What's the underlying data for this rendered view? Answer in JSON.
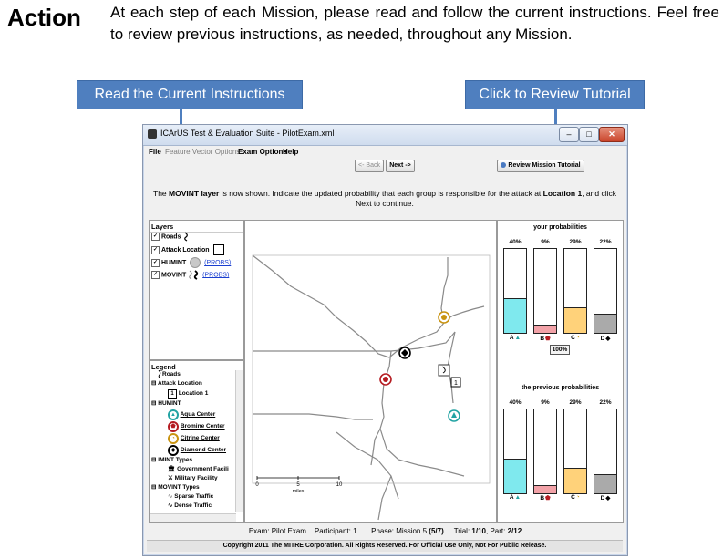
{
  "heading": "Action",
  "intro_text": "At each step of each Mission, please read and follow the current instructions. Feel free to review previous instructions, as needed, throughout any Mission.",
  "callouts": {
    "current_instructions": "Read the Current Instructions",
    "tutorial": "Click to Review Tutorial"
  },
  "window": {
    "title": "ICArUS Test & Evaluation Suite - PilotExam.xml",
    "menu": {
      "file": "File",
      "feature_vector_options": "Feature Vector Options",
      "exam_options": "Exam Options",
      "help": "Help"
    },
    "buttons": {
      "back": "<- Back",
      "next": "Next ->",
      "review_tutorial": "Review Mission Tutorial"
    },
    "instructions": {
      "prefix": "The",
      "layer": "MOVINT layer",
      "middle": "is now shown. Indicate the updated probability that each group is responsible for the attack at",
      "location": "Location 1",
      "suffix": ", and click Next to continue."
    },
    "layers": {
      "title": "Layers",
      "items": [
        {
          "label": "Roads",
          "checked": true
        },
        {
          "label": "Attack Location",
          "checked": true
        },
        {
          "label": "HUMINT",
          "checked": true,
          "link": "(PROBS)"
        },
        {
          "label": "MOVINT",
          "checked": true,
          "link": "(PROBS)"
        }
      ]
    },
    "legend": {
      "title": "Legend",
      "items": {
        "roads": "Roads",
        "attack_location": "Attack Location",
        "location_1": "Location 1",
        "location_1_number": "1",
        "humint": "HUMINT",
        "aqua_center": "Aqua Center",
        "bromine_center": "Bromine Center",
        "citrine_center": "Citrine Center",
        "diamond_center": "Diamond Center",
        "imint_types": "IMINT Types",
        "government_facility": "Government Facili",
        "military_facility": "Military Facility",
        "movint_types": "MOVINT Types",
        "sparse_traffic": "Sparse Traffic",
        "dense_traffic": "Dense Traffic"
      }
    },
    "map": {
      "scale_labels": [
        "0",
        "5",
        "10"
      ],
      "scale_unit": "miles",
      "location_label": "1"
    },
    "probabilities": {
      "current_title": "your probabilities",
      "previous_title": "the previous probabilities",
      "total": "100%",
      "groups": [
        {
          "label": "A",
          "value": 40,
          "value_label": "40%",
          "color": "#7fe9ee"
        },
        {
          "label": "B",
          "value": 9,
          "value_label": "9%",
          "color": "#f2a2a8"
        },
        {
          "label": "C",
          "value": 29,
          "value_label": "29%",
          "color": "#ffd27a"
        },
        {
          "label": "D",
          "value": 22,
          "value_label": "22%",
          "color": "#aaaaaa"
        }
      ],
      "previous_groups": [
        {
          "label": "A",
          "value": 40,
          "value_label": "40%",
          "color": "#7fe9ee"
        },
        {
          "label": "B",
          "value": 9,
          "value_label": "9%",
          "color": "#f2a2a8"
        },
        {
          "label": "C",
          "value": 29,
          "value_label": "29%",
          "color": "#ffd27a"
        },
        {
          "label": "D",
          "value": 22,
          "value_label": "22%",
          "color": "#aaaaaa"
        }
      ]
    },
    "status": {
      "exam": "Exam: Pilot Exam",
      "participant": "Participant: 1",
      "phase": "Phase: Mission 5",
      "phase_count": "(5/7)",
      "trial": "Trial:",
      "trial_value": "1/10",
      "part": ", Part:",
      "part_value": "2/12"
    },
    "copyright": "Copyright 2011 The MITRE Corporation. All Rights Reserved. For Official Use Only, Not For Public Release."
  }
}
